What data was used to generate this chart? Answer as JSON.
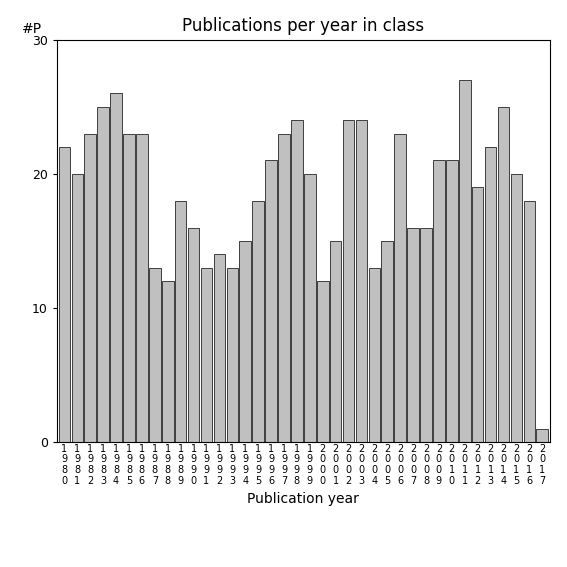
{
  "title": "Publications per year in class",
  "xlabel": "Publication year",
  "ylabel": "#P",
  "years": [
    1980,
    1981,
    1982,
    1983,
    1984,
    1985,
    1986,
    1987,
    1988,
    1989,
    1990,
    1991,
    1992,
    1993,
    1994,
    1995,
    1996,
    1997,
    1998,
    1999,
    2000,
    2001,
    2002,
    2003,
    2004,
    2005,
    2006,
    2007,
    2008,
    2009,
    2010,
    2011,
    2012,
    2013,
    2014,
    2015,
    2016,
    2017
  ],
  "values": [
    22,
    20,
    23,
    25,
    26,
    23,
    23,
    13,
    12,
    18,
    16,
    13,
    14,
    13,
    15,
    18,
    21,
    23,
    24,
    20,
    12,
    15,
    24,
    24,
    13,
    15,
    23,
    16,
    16,
    21,
    21,
    27,
    19,
    22,
    25,
    20,
    18,
    1
  ],
  "bar_color": "#c0c0c0",
  "bar_edge_color": "#000000",
  "ylim": [
    0,
    30
  ],
  "yticks": [
    0,
    10,
    20,
    30
  ],
  "background_color": "#ffffff",
  "title_fontsize": 12,
  "label_fontsize": 10,
  "tick_fontsize": 9,
  "figsize": [
    5.67,
    5.67
  ],
  "dpi": 100
}
